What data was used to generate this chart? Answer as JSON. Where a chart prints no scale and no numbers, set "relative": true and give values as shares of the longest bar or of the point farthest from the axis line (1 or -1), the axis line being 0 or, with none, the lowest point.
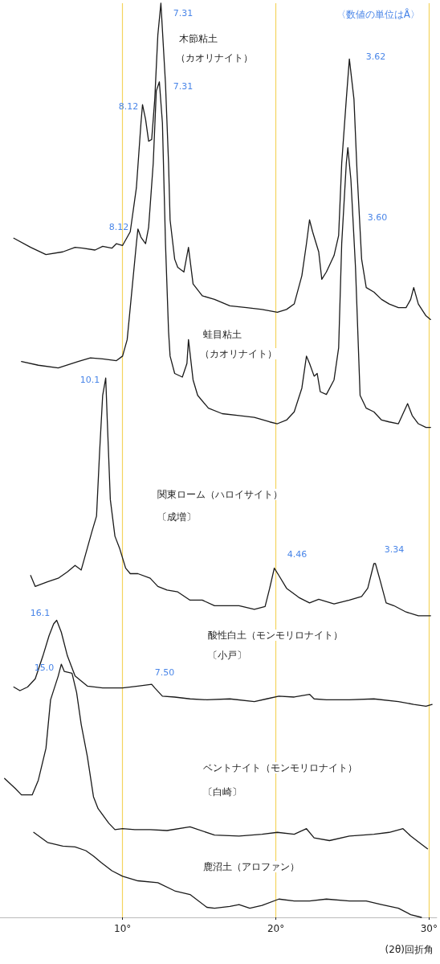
{
  "chart_data": {
    "type": "line",
    "relative": true,
    "xlabel": "(2θ)回折角",
    "xlim": [
      2,
      30.5
    ],
    "xticks": [
      {
        "value": 10,
        "label": "10°"
      },
      {
        "value": 20,
        "label": "20°"
      },
      {
        "value": 30,
        "label": "30°"
      }
    ],
    "grid": "x",
    "marker": "none",
    "line_style": "solid",
    "series": [
      {
        "color": "#1a1a1a",
        "x": [
          2.9,
          4.0,
          5.0,
          6.1,
          6.9,
          7.4,
          8.2,
          8.7,
          9.3,
          9.6,
          10.0,
          10.5,
          10.9,
          11.2,
          11.3,
          11.5,
          11.7,
          11.9,
          12.1,
          12.3,
          12.5,
          12.8,
          13.0,
          13.1,
          13.4,
          13.6,
          14.0,
          14.3,
          14.6,
          15.2,
          16.0,
          17.0,
          18.1,
          19.1,
          20.1,
          20.7,
          21.2,
          21.7,
          22.0,
          22.2,
          22.4,
          22.8,
          23.0,
          23.3,
          23.8,
          24.1,
          24.3,
          24.6,
          24.8,
          25.1,
          25.3,
          25.6,
          25.9,
          26.4,
          26.9,
          27.4,
          28.0,
          28.5,
          28.8,
          29.0,
          29.3,
          29.8,
          30.1
        ],
        "values": [
          0.743,
          0.733,
          0.725,
          0.728,
          0.733,
          0.732,
          0.73,
          0.734,
          0.732,
          0.737,
          0.735,
          0.75,
          0.798,
          0.869,
          0.889,
          0.873,
          0.849,
          0.851,
          0.895,
          0.965,
          1,
          0.912,
          0.825,
          0.763,
          0.72,
          0.711,
          0.706,
          0.733,
          0.693,
          0.68,
          0.676,
          0.669,
          0.667,
          0.665,
          0.662,
          0.665,
          0.671,
          0.702,
          0.737,
          0.763,
          0.75,
          0.728,
          0.698,
          0.706,
          0.724,
          0.746,
          0.825,
          0.895,
          0.939,
          0.895,
          0.816,
          0.72,
          0.689,
          0.684,
          0.676,
          0.671,
          0.667,
          0.667,
          0.676,
          0.689,
          0.671,
          0.658,
          0.654
        ]
      },
      {
        "color": "#1a1a1a",
        "x": [
          3.4,
          4.5,
          5.8,
          7.1,
          7.9,
          8.7,
          9.6,
          10.0,
          10.3,
          10.5,
          10.9,
          11.0,
          11.2,
          11.5,
          11.7,
          12.0,
          12.2,
          12.4,
          12.6,
          12.8,
          13.0,
          13.1,
          13.4,
          13.9,
          14.2,
          14.3,
          14.6,
          14.9,
          15.6,
          16.5,
          17.6,
          18.6,
          19.6,
          20.1,
          20.7,
          21.2,
          21.7,
          22.0,
          22.2,
          22.5,
          22.7,
          22.9,
          23.3,
          23.8,
          24.1,
          24.3,
          24.6,
          24.7,
          24.9,
          25.2,
          25.5,
          25.9,
          26.4,
          26.9,
          27.4,
          28.0,
          28.3,
          28.6,
          28.9,
          29.3,
          29.8,
          30.1
        ],
        "values": [
          0.608,
          0.604,
          0.601,
          0.608,
          0.612,
          0.611,
          0.609,
          0.614,
          0.632,
          0.667,
          0.737,
          0.753,
          0.744,
          0.737,
          0.755,
          0.825,
          0.904,
          0.914,
          0.869,
          0.737,
          0.641,
          0.614,
          0.595,
          0.591,
          0.606,
          0.632,
          0.588,
          0.571,
          0.557,
          0.551,
          0.549,
          0.547,
          0.542,
          0.54,
          0.544,
          0.553,
          0.579,
          0.614,
          0.606,
          0.592,
          0.595,
          0.575,
          0.572,
          0.588,
          0.623,
          0.737,
          0.825,
          0.842,
          0.807,
          0.711,
          0.571,
          0.557,
          0.553,
          0.544,
          0.542,
          0.54,
          0.551,
          0.562,
          0.549,
          0.54,
          0.536,
          0.536
        ]
      },
      {
        "color": "#1a1a1a",
        "x": [
          4.0,
          4.3,
          5.1,
          5.8,
          6.4,
          6.9,
          7.3,
          7.7,
          8.0,
          8.3,
          8.5,
          8.7,
          8.9,
          9.0,
          9.2,
          9.5,
          9.8,
          10.2,
          10.5,
          11.0,
          11.8,
          12.3,
          12.9,
          13.6,
          14.4,
          15.2,
          16.0,
          16.8,
          17.6,
          18.6,
          19.3,
          19.6,
          19.9,
          20.2,
          20.7,
          21.5,
          22.2,
          22.8,
          23.8,
          24.8,
          25.6,
          26.0,
          26.4,
          26.5,
          26.8,
          27.2,
          27.7,
          28.5,
          29.3,
          30.1
        ],
        "values": [
          0.374,
          0.362,
          0.367,
          0.371,
          0.378,
          0.385,
          0.38,
          0.404,
          0.422,
          0.439,
          0.509,
          0.571,
          0.59,
          0.544,
          0.457,
          0.417,
          0.404,
          0.382,
          0.376,
          0.376,
          0.371,
          0.362,
          0.358,
          0.356,
          0.347,
          0.347,
          0.341,
          0.341,
          0.341,
          0.337,
          0.34,
          0.36,
          0.382,
          0.374,
          0.36,
          0.35,
          0.344,
          0.348,
          0.343,
          0.347,
          0.351,
          0.36,
          0.387,
          0.387,
          0.369,
          0.344,
          0.341,
          0.334,
          0.33,
          0.33
        ]
      },
      {
        "color": "#1a1a1a",
        "x": [
          2.9,
          3.3,
          3.8,
          4.3,
          4.8,
          5.2,
          5.5,
          5.7,
          6.0,
          6.4,
          6.9,
          7.7,
          8.7,
          10.0,
          11.0,
          11.9,
          12.1,
          12.6,
          13.4,
          14.4,
          15.5,
          17.0,
          18.6,
          19.4,
          20.2,
          21.2,
          22.2,
          22.5,
          23.3,
          24.8,
          26.4,
          28.0,
          29.0,
          29.8,
          30.2
        ],
        "values": [
          0.252,
          0.248,
          0.252,
          0.261,
          0.286,
          0.308,
          0.321,
          0.325,
          0.312,
          0.286,
          0.264,
          0.253,
          0.251,
          0.251,
          0.253,
          0.255,
          0.251,
          0.242,
          0.241,
          0.239,
          0.238,
          0.239,
          0.236,
          0.239,
          0.242,
          0.241,
          0.244,
          0.239,
          0.238,
          0.238,
          0.239,
          0.236,
          0.233,
          0.231,
          0.233
        ]
      },
      {
        "color": "#1a1a1a",
        "x": [
          2.3,
          3.0,
          3.4,
          4.1,
          4.5,
          5.0,
          5.3,
          5.8,
          6.0,
          6.2,
          6.7,
          7.0,
          7.3,
          7.7,
          8.1,
          8.4,
          9.1,
          9.5,
          10.0,
          10.8,
          11.8,
          12.9,
          14.4,
          16.0,
          17.6,
          19.1,
          20.1,
          21.2,
          22.0,
          22.5,
          23.5,
          24.8,
          26.4,
          27.4,
          28.3,
          28.8,
          29.5,
          29.9
        ],
        "values": [
          0.152,
          0.141,
          0.134,
          0.134,
          0.15,
          0.185,
          0.238,
          0.264,
          0.277,
          0.269,
          0.267,
          0.246,
          0.211,
          0.176,
          0.132,
          0.119,
          0.103,
          0.096,
          0.097,
          0.096,
          0.096,
          0.095,
          0.099,
          0.09,
          0.089,
          0.091,
          0.093,
          0.091,
          0.097,
          0.087,
          0.084,
          0.089,
          0.091,
          0.093,
          0.097,
          0.089,
          0.08,
          0.075
        ]
      },
      {
        "color": "#1a1a1a",
        "x": [
          4.2,
          5.1,
          6.1,
          6.9,
          7.6,
          8.1,
          8.6,
          9.3,
          10.0,
          11.0,
          12.3,
          13.4,
          14.4,
          15.5,
          16.0,
          17.0,
          17.6,
          18.3,
          19.1,
          20.2,
          21.2,
          22.2,
          23.3,
          24.8,
          25.9,
          26.9,
          28.0,
          28.8,
          29.5
        ],
        "values": [
          0.093,
          0.082,
          0.078,
          0.077,
          0.073,
          0.067,
          0.06,
          0.051,
          0.045,
          0.04,
          0.038,
          0.029,
          0.025,
          0.011,
          0.01,
          0.012,
          0.014,
          0.01,
          0.013,
          0.02,
          0.018,
          0.018,
          0.02,
          0.018,
          0.018,
          0.014,
          0.01,
          0.003,
          0
        ]
      }
    ],
    "annotations": [
      "〈数値の単位はÅ〉",
      "7.31",
      "8.12",
      "3.62",
      "7.31",
      "8.12",
      "3.60",
      "10.1",
      "4.46",
      "3.34",
      "16.1",
      "15.0",
      "7.50",
      "木節粘土",
      "（カオリナイト）",
      "蛙目粘土",
      "（カオリナイト）",
      "関東ローム（ハロイサイト）",
      "〔成増〕",
      "酸性白土（モンモリロナイト）",
      "〔小戸〕",
      "ベントナイト（モンモリロナイト）",
      "〔白崎〕",
      "鹿沼土（アロファン）"
    ]
  }
}
